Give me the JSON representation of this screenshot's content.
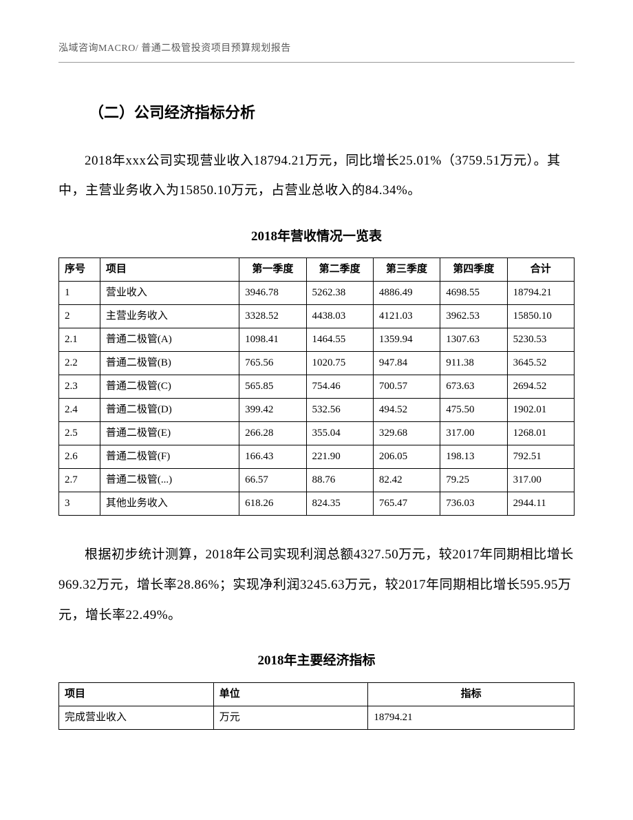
{
  "header": {
    "text": "泓域咨询MACRO/    普通二极管投资项目预算规划报告"
  },
  "section_title": "（二）公司经济指标分析",
  "para1": "2018年xxx公司实现营业收入18794.21万元，同比增长25.01%（3759.51万元）。其中，主营业务收入为15850.10万元，占营业总收入的84.34%。",
  "table1": {
    "title": "2018年营收情况一览表",
    "headers": {
      "seq": "序号",
      "item": "项目",
      "q1": "第一季度",
      "q2": "第二季度",
      "q3": "第三季度",
      "q4": "第四季度",
      "total": "合计"
    },
    "rows": [
      {
        "seq": "1",
        "item": "营业收入",
        "q1": "3946.78",
        "q2": "5262.38",
        "q3": "4886.49",
        "q4": "4698.55",
        "total": "18794.21"
      },
      {
        "seq": "2",
        "item": "主营业务收入",
        "q1": "3328.52",
        "q2": "4438.03",
        "q3": "4121.03",
        "q4": "3962.53",
        "total": "15850.10"
      },
      {
        "seq": "2.1",
        "item": "普通二极管(A)",
        "q1": "1098.41",
        "q2": "1464.55",
        "q3": "1359.94",
        "q4": "1307.63",
        "total": "5230.53"
      },
      {
        "seq": "2.2",
        "item": "普通二极管(B)",
        "q1": "765.56",
        "q2": "1020.75",
        "q3": "947.84",
        "q4": "911.38",
        "total": "3645.52"
      },
      {
        "seq": "2.3",
        "item": "普通二极管(C)",
        "q1": "565.85",
        "q2": "754.46",
        "q3": "700.57",
        "q4": "673.63",
        "total": "2694.52"
      },
      {
        "seq": "2.4",
        "item": "普通二极管(D)",
        "q1": "399.42",
        "q2": "532.56",
        "q3": "494.52",
        "q4": "475.50",
        "total": "1902.01"
      },
      {
        "seq": "2.5",
        "item": "普通二极管(E)",
        "q1": "266.28",
        "q2": "355.04",
        "q3": "329.68",
        "q4": "317.00",
        "total": "1268.01"
      },
      {
        "seq": "2.6",
        "item": "普通二极管(F)",
        "q1": "166.43",
        "q2": "221.90",
        "q3": "206.05",
        "q4": "198.13",
        "total": "792.51"
      },
      {
        "seq": "2.7",
        "item": "普通二极管(...)",
        "q1": "66.57",
        "q2": "88.76",
        "q3": "82.42",
        "q4": "79.25",
        "total": "317.00"
      },
      {
        "seq": "3",
        "item": "其他业务收入",
        "q1": "618.26",
        "q2": "824.35",
        "q3": "765.47",
        "q4": "736.03",
        "total": "2944.11"
      }
    ]
  },
  "para2": "根据初步统计测算，2018年公司实现利润总额4327.50万元，较2017年同期相比增长969.32万元，增长率28.86%；实现净利润3245.63万元，较2017年同期相比增长595.95万元，增长率22.49%。",
  "table2": {
    "title": "2018年主要经济指标",
    "headers": {
      "item": "项目",
      "unit": "单位",
      "value": "指标"
    },
    "rows": [
      {
        "item": "完成营业收入",
        "unit": "万元",
        "value": "18794.21"
      }
    ]
  }
}
